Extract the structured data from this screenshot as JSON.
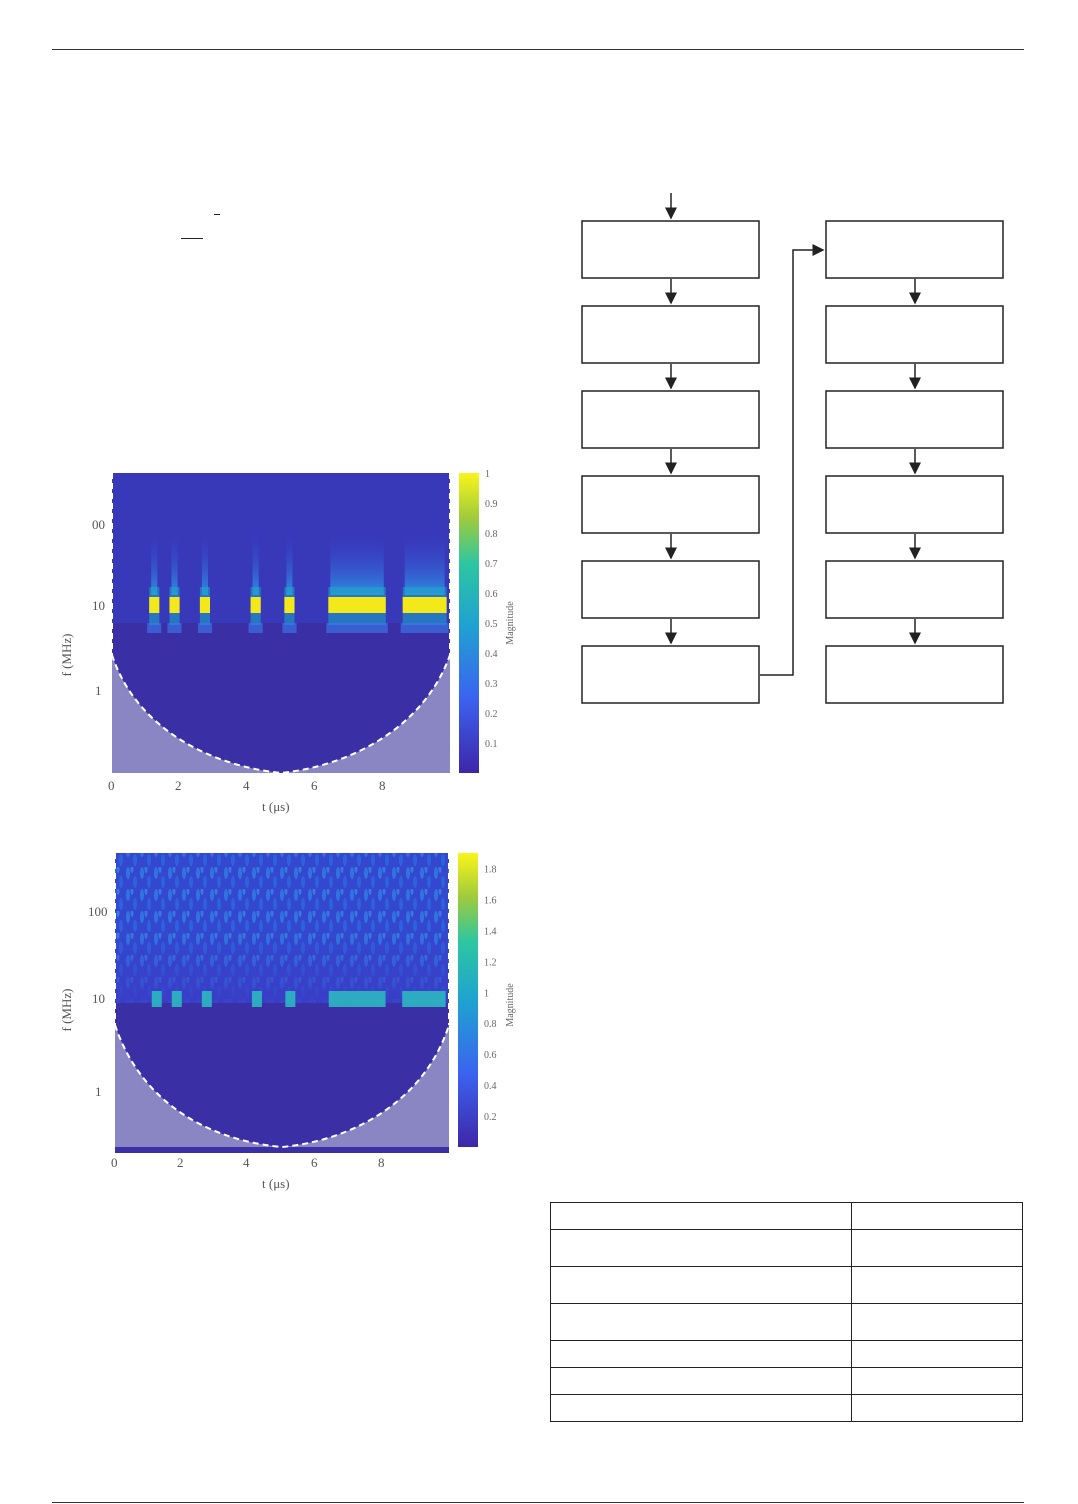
{
  "figure1": {
    "xlabel": "t (μs)",
    "ylabel": "f (MHz)",
    "colorbar_label": "Magnitude"
  },
  "figure2": {
    "xlabel": "t (μs)",
    "ylabel": "f (MHz)",
    "colorbar_label": "Magnitude"
  },
  "chart_data": [
    {
      "type": "heatmap",
      "description_free": true,
      "xlabel": "t (μs)",
      "ylabel": "f (MHz)",
      "colorbar_label": "Magnitude",
      "x_ticks": [
        "0",
        "2",
        "4",
        "6",
        "8"
      ],
      "y_ticks": [
        "1",
        "10",
        "100"
      ],
      "y_scale": "log",
      "xlim": [
        0,
        10
      ],
      "colorbar_ticks": [
        "0.1",
        "0.2",
        "0.3",
        "0.4",
        "0.5",
        "0.6",
        "0.7",
        "0.8",
        "0.9",
        "1"
      ],
      "colorbar_range": [
        0,
        1
      ],
      "band_frequency": 10,
      "pulse_intervals": [
        [
          1.1,
          1.4
        ],
        [
          1.7,
          2.0
        ],
        [
          2.6,
          2.9
        ],
        [
          4.1,
          4.4
        ],
        [
          5.1,
          5.4
        ],
        [
          6.4,
          8.1
        ],
        [
          8.6,
          9.9
        ]
      ]
    },
    {
      "type": "heatmap",
      "xlabel": "t (μs)",
      "ylabel": "f (MHz)",
      "colorbar_label": "Magnitude",
      "x_ticks": [
        "0",
        "2",
        "4",
        "6",
        "8"
      ],
      "y_ticks": [
        "1",
        "10",
        "100"
      ],
      "y_scale": "log",
      "xlim": [
        0,
        10
      ],
      "colorbar_ticks": [
        "0.2",
        "0.4",
        "0.6",
        "0.8",
        "1",
        "1.2",
        "1.4",
        "1.6",
        "1.8"
      ],
      "colorbar_range": [
        0,
        1.9
      ],
      "band_frequency": 10,
      "pulse_intervals": [
        [
          1.1,
          1.4
        ],
        [
          1.7,
          2.0
        ],
        [
          2.6,
          2.9
        ],
        [
          4.1,
          4.4
        ],
        [
          5.1,
          5.4
        ],
        [
          6.4,
          8.1
        ],
        [
          8.6,
          9.9
        ]
      ]
    }
  ],
  "colors": {
    "map_low": "#3b2fa6",
    "map_mid": "#1fa1c8",
    "map_high": "#f2e81a",
    "coi_shade": "#8a86c4",
    "line": "#222222"
  }
}
